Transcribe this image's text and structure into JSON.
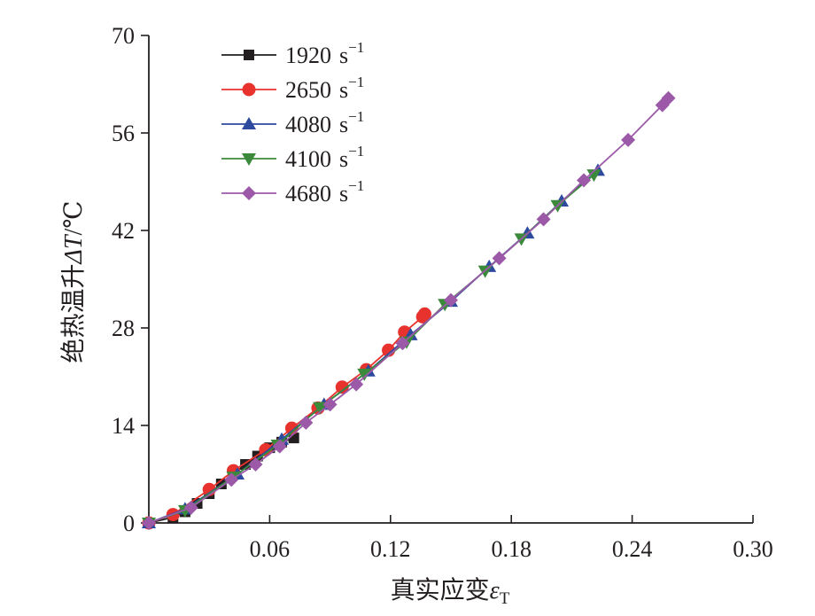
{
  "chart_data": {
    "type": "line",
    "xlabel": "真实应变",
    "xlabel_symbol": "ε",
    "xlabel_subscript": "T",
    "ylabel": "绝热温升",
    "ylabel_symbol": "ΔT",
    "ylabel_unit": "/℃",
    "xlim": [
      0,
      0.3
    ],
    "ylim": [
      0,
      70
    ],
    "xticks": [
      0.06,
      0.12,
      0.18,
      0.24,
      0.3
    ],
    "xtick_labels": [
      "0.06",
      "0.12",
      "0.18",
      "0.24",
      "0.30"
    ],
    "yticks": [
      0,
      14,
      28,
      42,
      56,
      70
    ],
    "ytick_labels": [
      "0",
      "14",
      "28",
      "42",
      "56",
      "70"
    ],
    "grid": false,
    "legend_position": "top-left",
    "unit_label": "s",
    "unit_exponent": "−1",
    "series": [
      {
        "name": "1920",
        "color": "#231f20",
        "marker": "square",
        "x": [
          0,
          0.012,
          0.018,
          0.024,
          0.03,
          0.036,
          0.042,
          0.048,
          0.054,
          0.06,
          0.066,
          0.072
        ],
        "y": [
          0,
          0.8,
          1.6,
          2.8,
          4.2,
          5.6,
          7.0,
          8.4,
          9.6,
          10.8,
          11.6,
          12.2
        ]
      },
      {
        "name": "2650",
        "color": "#e8322d",
        "marker": "circle",
        "x": [
          0,
          0.012,
          0.03,
          0.042,
          0.058,
          0.071,
          0.084,
          0.096,
          0.108,
          0.119,
          0.127,
          0.136,
          0.137
        ],
        "y": [
          0,
          1.2,
          4.8,
          7.5,
          10.5,
          13.6,
          16.5,
          19.5,
          22.0,
          24.8,
          27.4,
          29.6,
          30.0
        ]
      },
      {
        "name": "4080",
        "color": "#2e4a9e",
        "marker": "triangle-up",
        "x": [
          0,
          0.018,
          0.044,
          0.066,
          0.087,
          0.109,
          0.13,
          0.15,
          0.169,
          0.188,
          0.205,
          0.223
        ],
        "y": [
          0,
          2.0,
          7.0,
          12.0,
          17.0,
          21.8,
          27.0,
          31.8,
          36.8,
          41.6,
          46.2,
          50.6
        ]
      },
      {
        "name": "4100",
        "color": "#3b8a3b",
        "marker": "triangle-down",
        "x": [
          0,
          0.018,
          0.042,
          0.064,
          0.085,
          0.107,
          0.128,
          0.147,
          0.167,
          0.185,
          0.203,
          0.221
        ],
        "y": [
          0,
          1.8,
          6.6,
          11.2,
          16.6,
          21.4,
          26.0,
          31.4,
          36.2,
          40.8,
          45.6,
          50.0
        ]
      },
      {
        "name": "4680",
        "color": "#9b59a8",
        "marker": "diamond",
        "x": [
          0,
          0.021,
          0.041,
          0.053,
          0.065,
          0.078,
          0.09,
          0.103,
          0.126,
          0.15,
          0.174,
          0.196,
          0.216,
          0.238,
          0.255,
          0.258
        ],
        "y": [
          0,
          2.2,
          6.2,
          8.4,
          11.0,
          14.4,
          17.0,
          19.9,
          25.8,
          32.0,
          38.0,
          43.6,
          49.2,
          55.0,
          60.0,
          61.0
        ]
      }
    ]
  }
}
